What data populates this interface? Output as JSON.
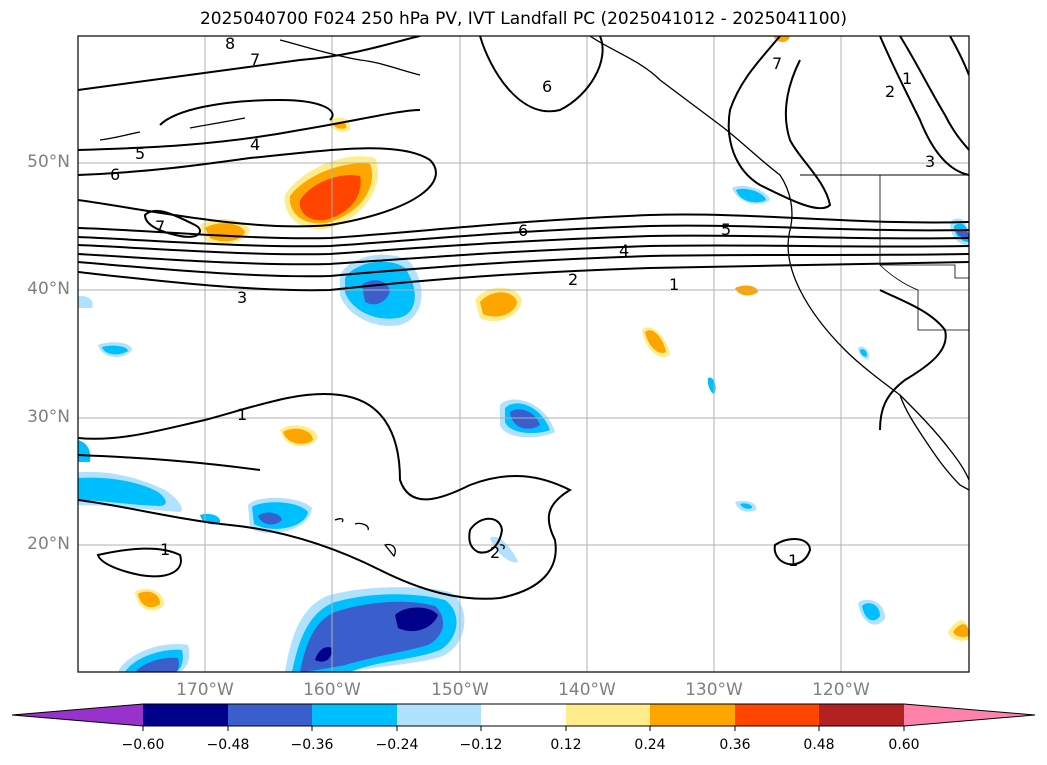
{
  "title": "2025040700 F024 250 hPa PV, IVT Landfall PC (2025041012 - 2025041100)",
  "lat_labels": [
    "50°N",
    "40°N",
    "30°N",
    "20°N"
  ],
  "lon_labels": [
    "170°W",
    "160°W",
    "150°W",
    "140°W",
    "130°W",
    "120°W"
  ],
  "contour_labels": [
    "8",
    "7",
    "7",
    "6",
    "5",
    "6",
    "4",
    "7",
    "6",
    "5",
    "4",
    "3",
    "2",
    "1",
    "1",
    "1",
    "2",
    "3",
    "1",
    "1",
    "2"
  ],
  "colorbar": {
    "ticks": [
      "−0.60",
      "−0.48",
      "−0.36",
      "−0.24",
      "−0.12",
      "0.12",
      "0.24",
      "0.36",
      "0.48",
      "0.60"
    ],
    "colors": [
      "#9932cc",
      "#00008b",
      "#3a5fcd",
      "#00bfff",
      "#b0e2ff",
      "#ffffff",
      "#ffec8b",
      "#ffa500",
      "#ff4500",
      "#b22222",
      "#ff82ab"
    ]
  }
}
